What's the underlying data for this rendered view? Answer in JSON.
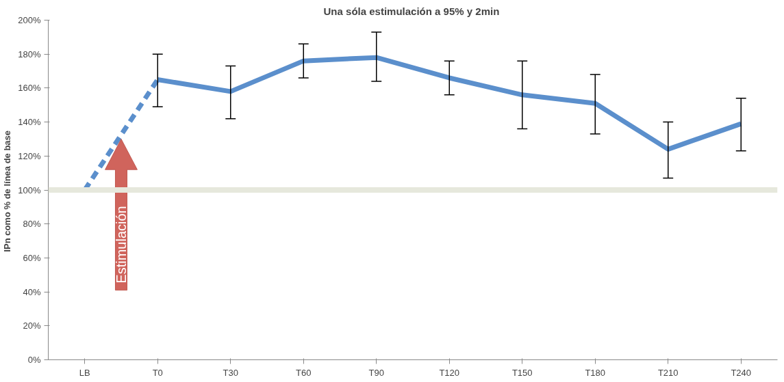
{
  "chart_data": {
    "type": "line",
    "title": "Una sóla estimulación a  95% y 2min",
    "ylabel": "IPn como % de  línea de base",
    "categories": [
      "LB",
      "T0",
      "T30",
      "T60",
      "T90",
      "T120",
      "T150",
      "T180",
      "T210",
      "T240"
    ],
    "series": [
      {
        "color": "#5b8fcc",
        "line_style": "dashed",
        "values": [
          100,
          165,
          null,
          null,
          null,
          null,
          null,
          null,
          null,
          null
        ]
      },
      {
        "color": "#5b8fcc",
        "line_style": "solid",
        "values": [
          null,
          165,
          158,
          176,
          178,
          166,
          156,
          151,
          124,
          139
        ],
        "errors": [
          null,
          [
            149,
            180
          ],
          [
            142,
            173
          ],
          [
            166,
            186
          ],
          [
            164,
            193
          ],
          [
            156,
            176
          ],
          [
            136,
            176
          ],
          [
            133,
            168
          ],
          [
            107,
            140
          ],
          [
            123,
            154
          ]
        ]
      }
    ],
    "ylim": [
      0,
      200
    ],
    "yticks": [
      {
        "value": 0,
        "label": "0%"
      },
      {
        "value": 20,
        "label": "20%"
      },
      {
        "value": 40,
        "label": "40%"
      },
      {
        "value": 60,
        "label": "60%"
      },
      {
        "value": 80,
        "label": "80%"
      },
      {
        "value": 100,
        "label": "100%"
      },
      {
        "value": 120,
        "label": "120%"
      },
      {
        "value": 140,
        "label": "140%"
      },
      {
        "value": 160,
        "label": "160%"
      },
      {
        "value": 180,
        "label": "180%"
      },
      {
        "value": 200,
        "label": "200%"
      }
    ],
    "ref_lines": [
      {
        "axis": "y",
        "value": 100,
        "color": "#e6e8dc"
      }
    ],
    "annotations": [
      "Estimulación"
    ],
    "grid": false,
    "marker": "none"
  }
}
